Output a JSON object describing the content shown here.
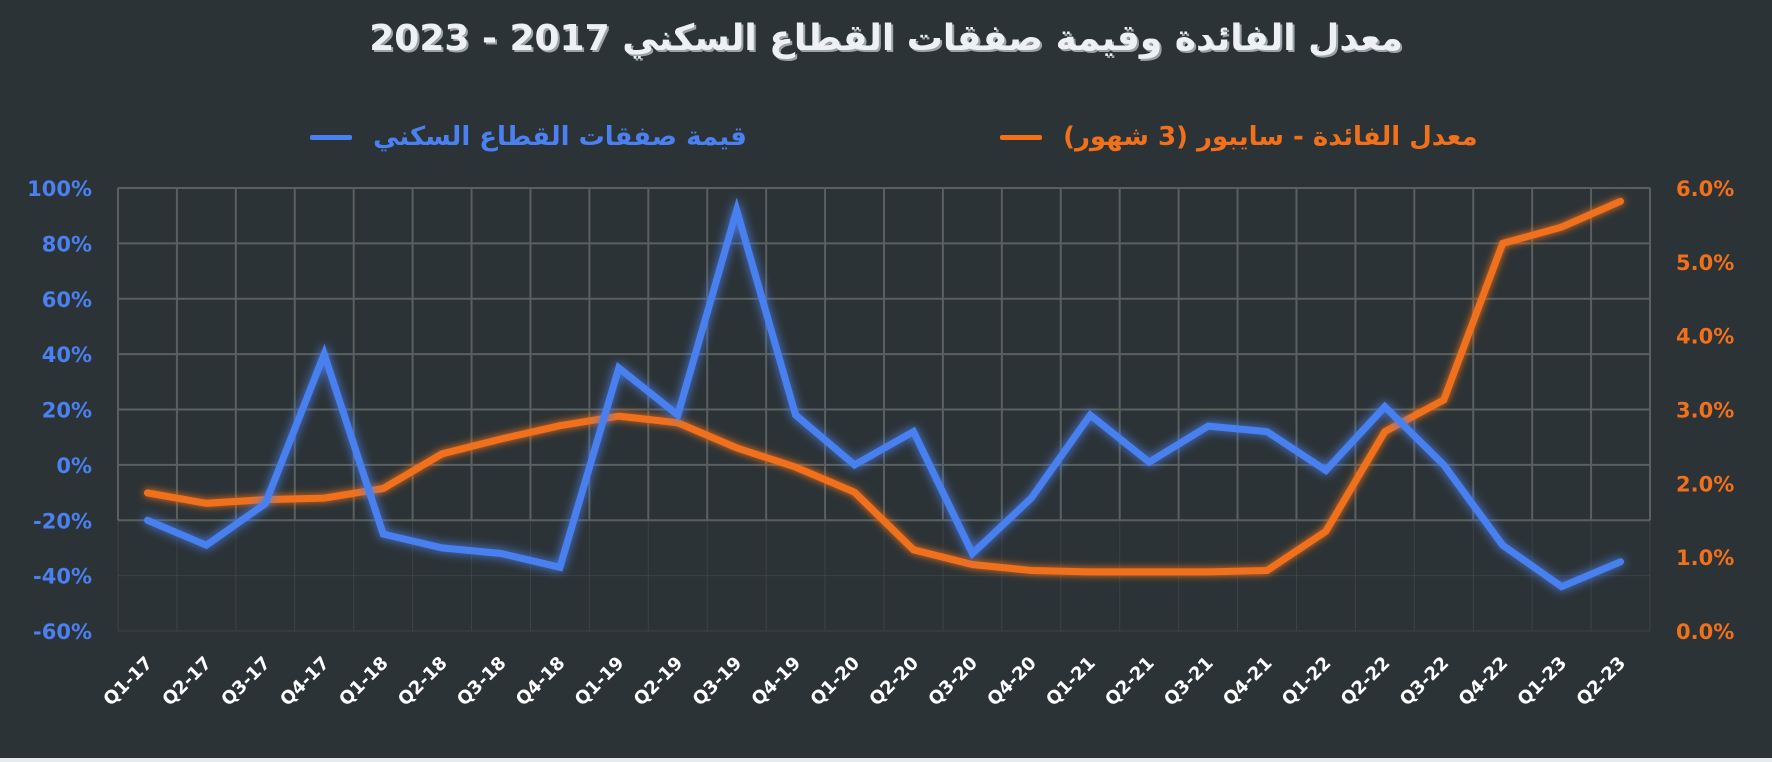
{
  "title": "معدل الفائدة وقيمة صفقات القطاع السكني 2017 - 2023",
  "legend": {
    "blue": "قيمة صفقات القطاع السكني",
    "orange": "معدل الفائدة - سايبور (3 شهور)"
  },
  "colors": {
    "background": "#2c3336",
    "grid": "#59605f",
    "blue": "#4a80f0",
    "orange": "#f0701c",
    "title": "#eef1f3"
  },
  "chart_data": {
    "type": "line",
    "title": "معدل الفائدة وقيمة صفقات القطاع السكني 2017 - 2023",
    "xlabel": "",
    "ylabel": "",
    "y2label": "",
    "legend_position": "top",
    "grid": true,
    "categories": [
      "Q1-17",
      "Q2-17",
      "Q3-17",
      "Q4-17",
      "Q1-18",
      "Q2-18",
      "Q3-18",
      "Q4-18",
      "Q1-19",
      "Q2-19",
      "Q3-19",
      "Q4-19",
      "Q1-20",
      "Q2-20",
      "Q3-20",
      "Q4-20",
      "Q1-21",
      "Q2-21",
      "Q3-21",
      "Q4-21",
      "Q1-22",
      "Q2-22",
      "Q3-22",
      "Q4-22",
      "Q1-23",
      "Q2-23"
    ],
    "left_axis": {
      "ylim": [
        -60,
        100
      ],
      "ticks": [
        "100%",
        "80%",
        "60%",
        "40%",
        "20%",
        "0%",
        "-20%",
        "-40%",
        "-60%"
      ]
    },
    "right_axis": {
      "ylim": [
        0,
        6
      ],
      "ticks": [
        "6.0%",
        "5.0%",
        "4.0%",
        "3.0%",
        "2.0%",
        "1.0%",
        "0.0%"
      ]
    },
    "series": [
      {
        "name": "قيمة صفقات القطاع السكني",
        "axis": "left",
        "unit": "%",
        "color": "#4a80f0",
        "values": [
          -20,
          -29,
          -14,
          40,
          -25,
          -30,
          -32,
          -37,
          35,
          18,
          92,
          18,
          0,
          12,
          -32,
          -12,
          18,
          1,
          14,
          12,
          -2,
          21,
          0,
          -29,
          -44,
          -35
        ]
      },
      {
        "name": "معدل الفائدة - سايبور (3 شهور)",
        "axis": "right",
        "unit": "%",
        "color": "#f0701c",
        "values": [
          1.87,
          1.73,
          1.78,
          1.8,
          1.93,
          2.4,
          2.6,
          2.78,
          2.91,
          2.82,
          2.48,
          2.22,
          1.88,
          1.1,
          0.9,
          0.82,
          0.8,
          0.8,
          0.8,
          0.82,
          1.35,
          2.7,
          3.13,
          5.25,
          5.47,
          5.82
        ]
      }
    ]
  }
}
